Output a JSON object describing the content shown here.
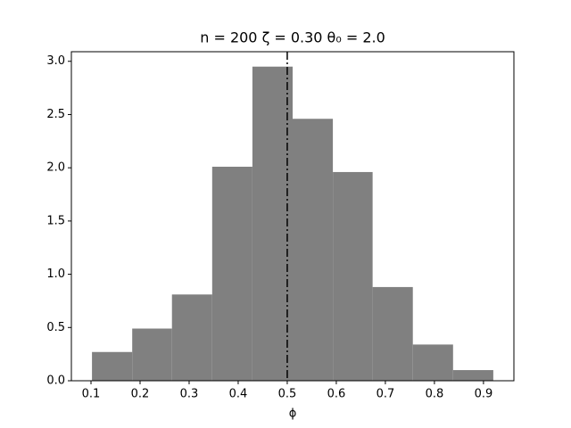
{
  "chart_data": {
    "type": "histogram",
    "title": "n = 200 ζ = 0.30 θ₀ = 2.0",
    "x_label": "ϕ",
    "bins": [
      0.102,
      0.184,
      0.265,
      0.347,
      0.429,
      0.511,
      0.593,
      0.674,
      0.756,
      0.838,
      0.92
    ],
    "values": [
      0.27,
      0.49,
      0.81,
      2.01,
      2.95,
      2.46,
      1.96,
      0.88,
      0.34,
      0.1
    ],
    "color": "#808080",
    "vline": {
      "x": 0.5,
      "color": "#000000",
      "style": "dashdot"
    },
    "xlim": [
      0.06,
      0.962
    ],
    "ylim": [
      0,
      3.09
    ],
    "xticks": [
      0.1,
      0.2,
      0.3,
      0.4,
      0.5,
      0.6,
      0.7,
      0.8,
      0.9
    ],
    "yticks": [
      {
        "value": 0,
        "label": "0.0"
      },
      0.5,
      {
        "value": 1,
        "label": "1.0"
      },
      1.5,
      {
        "value": 2,
        "label": "2.0"
      },
      2.5,
      {
        "value": 3,
        "label": "3.0"
      }
    ],
    "grid": false
  }
}
